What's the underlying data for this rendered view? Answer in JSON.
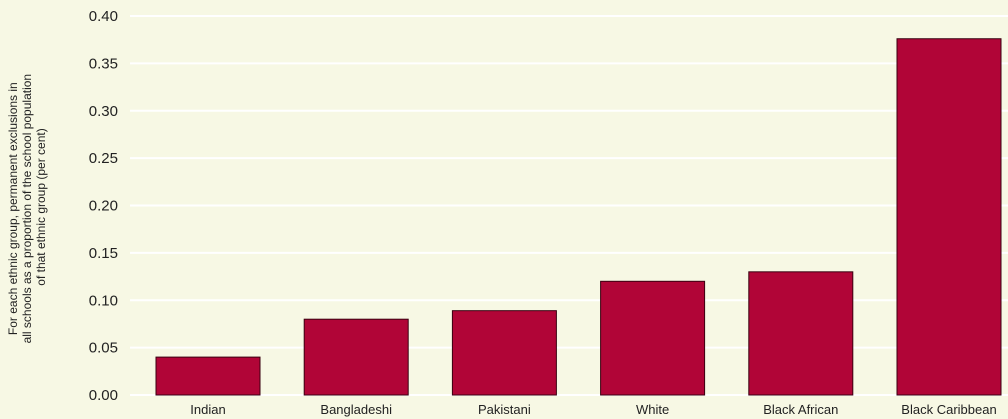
{
  "chart_data": {
    "type": "bar",
    "title": "",
    "xlabel": "",
    "ylabel_lines": [
      "For each ethnic group, permanent exclusions in",
      "all schools as a proportion of the school population",
      "of that ethnic group (per cent)"
    ],
    "categories": [
      "Indian",
      "Bangladeshi",
      "Pakistani",
      "White",
      "Black African",
      "Black Caribbean"
    ],
    "values": [
      0.04,
      0.08,
      0.089,
      0.12,
      0.13,
      0.376
    ],
    "ylim": [
      0,
      0.4
    ],
    "yticks": [
      "0.00",
      "0.05",
      "0.10",
      "0.15",
      "0.20",
      "0.25",
      "0.30",
      "0.35",
      "0.40"
    ],
    "grid": true,
    "legend": "none"
  },
  "colors": {
    "background": "#f7f8e4",
    "bar": "#b10537",
    "bar_outline": "#3a0010",
    "grid": "#ffffff",
    "text": "#222222"
  }
}
